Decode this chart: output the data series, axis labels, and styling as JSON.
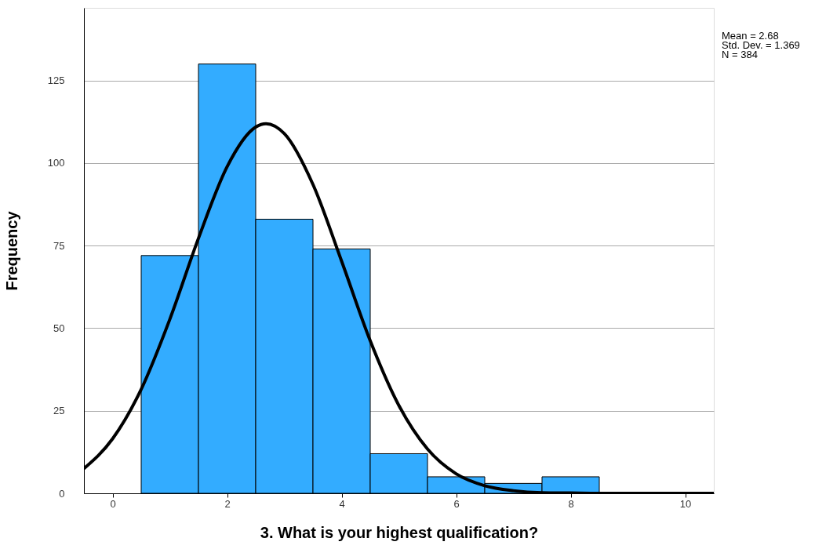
{
  "chart_data": {
    "type": "histogram",
    "xlabel": "3. What is your highest qualification?",
    "ylabel": "Frequency",
    "bins": [
      0.5,
      1.5,
      2.5,
      3.5,
      4.5,
      5.5,
      6.5,
      7.5,
      8.5
    ],
    "values": [
      72,
      130,
      83,
      74,
      12,
      5,
      3,
      5
    ],
    "color": "#33acff",
    "series": [
      {
        "type": "line",
        "color": "#000000",
        "x": [
          -0.5,
          0,
          0.5,
          1,
          1.5,
          2,
          2.5,
          2.68,
          3,
          3.5,
          4,
          4.5,
          5,
          5.5,
          6,
          6.5,
          7,
          7.5,
          8,
          8.5,
          9,
          9.5,
          10,
          10.5
        ],
        "values": [
          7.5,
          16.5,
          31.5,
          52.7,
          77.2,
          98.9,
          110.9,
          111.9,
          108.9,
          93.5,
          70.3,
          46.2,
          26.6,
          13.4,
          5.9,
          2.3,
          0.8,
          0.2,
          0.1,
          0,
          0,
          0,
          0,
          0
        ]
      }
    ],
    "xlim": [
      -0.5,
      10.5
    ],
    "ylim": [
      0,
      147
    ],
    "xticks": [
      0,
      2,
      4,
      6,
      8,
      10
    ],
    "yticks": [
      0,
      25,
      50,
      75,
      100,
      125
    ],
    "grid": "y",
    "annotations": [
      "Mean = 2.68",
      "Std. Dev. = 1.369",
      "N = 384"
    ]
  }
}
